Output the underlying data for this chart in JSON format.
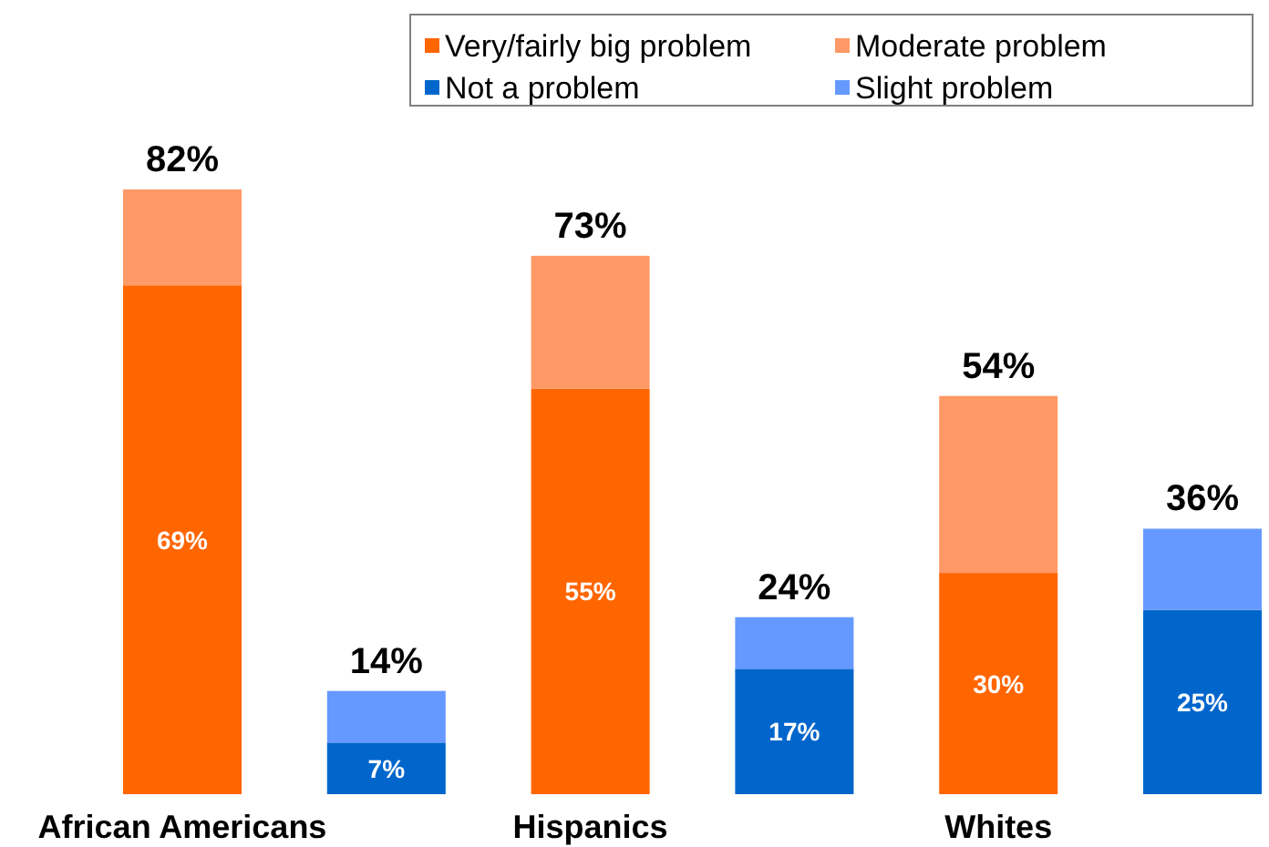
{
  "chart_data": {
    "type": "bar",
    "stacked": true,
    "legend": "top",
    "categories": [
      "African Americans",
      null,
      "Hispanics",
      null,
      "Whites",
      null
    ],
    "series": [
      {
        "name": "Very/fairly big problem",
        "color": "#ff6600",
        "values": [
          69,
          null,
          55,
          null,
          30,
          null
        ],
        "value_labels": [
          "69%",
          null,
          "55%",
          null,
          "30%",
          null
        ]
      },
      {
        "name": "Moderate problem",
        "color": "#ff9966",
        "values": [
          13,
          null,
          18,
          null,
          24,
          null
        ]
      },
      {
        "name": "Not a problem",
        "color": "#0066cc",
        "values": [
          null,
          7,
          null,
          17,
          null,
          25
        ],
        "value_labels": [
          null,
          "7%",
          null,
          "17%",
          null,
          "25%"
        ]
      },
      {
        "name": "Slight problem",
        "color": "#6699ff",
        "values": [
          null,
          7,
          null,
          7,
          null,
          11
        ]
      }
    ],
    "totals": [
      "82%",
      "14%",
      "73%",
      "24%",
      "54%",
      "36%"
    ]
  }
}
